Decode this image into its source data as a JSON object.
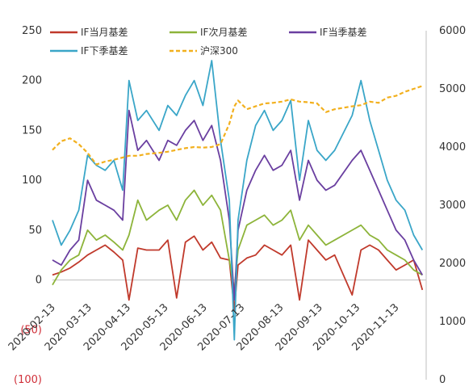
{
  "chart_data": {
    "type": "line",
    "title": "",
    "xlabel": "",
    "ylabel": "",
    "ylim": [
      -100,
      250
    ],
    "y2lim": [
      0,
      6000
    ],
    "grid": false,
    "legend_position": "top",
    "y_ticks": [
      "250",
      "200",
      "150",
      "100",
      "50",
      "0",
      "(50)",
      "(100)"
    ],
    "y2_ticks": [
      "6000",
      "5000",
      "4000",
      "3000",
      "2000",
      "1000",
      "0"
    ],
    "x_ticks": [
      "2020-02-13",
      "2020-03-13",
      "2020-04-13",
      "2020-05-13",
      "2020-06-13",
      "2020-07-13",
      "2020-08-13",
      "2020-09-13",
      "2020-10-13",
      "2020-11-13"
    ],
    "series": [
      {
        "name": "IF当月基差",
        "axis": "left",
        "color": "#c0392b",
        "dash": false,
        "x": [
          "2020-02-13",
          "2020-02-20",
          "2020-02-27",
          "2020-03-05",
          "2020-03-12",
          "2020-03-19",
          "2020-03-26",
          "2020-04-02",
          "2020-04-09",
          "2020-04-14",
          "2020-04-21",
          "2020-04-28",
          "2020-05-08",
          "2020-05-15",
          "2020-05-22",
          "2020-05-29",
          "2020-06-05",
          "2020-06-12",
          "2020-06-19",
          "2020-06-26",
          "2020-07-03",
          "2020-07-07",
          "2020-07-10",
          "2020-07-17",
          "2020-07-24",
          "2020-07-31",
          "2020-08-07",
          "2020-08-14",
          "2020-08-21",
          "2020-08-28",
          "2020-09-04",
          "2020-09-11",
          "2020-09-18",
          "2020-09-25",
          "2020-10-09",
          "2020-10-16",
          "2020-10-23",
          "2020-10-30",
          "2020-11-06",
          "2020-11-13",
          "2020-11-20",
          "2020-11-27",
          "2020-12-04"
        ],
        "values": [
          5,
          8,
          12,
          18,
          25,
          30,
          35,
          28,
          20,
          -20,
          32,
          30,
          30,
          40,
          -18,
          38,
          44,
          30,
          38,
          22,
          20,
          -30,
          15,
          22,
          25,
          35,
          30,
          25,
          35,
          -20,
          40,
          30,
          20,
          25,
          -15,
          30,
          35,
          30,
          20,
          10,
          15,
          20,
          -10
        ]
      },
      {
        "name": "IF次月基差",
        "axis": "left",
        "color": "#8db43a",
        "dash": false,
        "x": [
          "2020-02-13",
          "2020-02-20",
          "2020-02-27",
          "2020-03-05",
          "2020-03-12",
          "2020-03-19",
          "2020-03-26",
          "2020-04-02",
          "2020-04-09",
          "2020-04-14",
          "2020-04-21",
          "2020-04-28",
          "2020-05-08",
          "2020-05-15",
          "2020-05-22",
          "2020-05-29",
          "2020-06-05",
          "2020-06-12",
          "2020-06-19",
          "2020-06-26",
          "2020-07-03",
          "2020-07-07",
          "2020-07-10",
          "2020-07-17",
          "2020-07-24",
          "2020-07-31",
          "2020-08-07",
          "2020-08-14",
          "2020-08-21",
          "2020-08-28",
          "2020-09-04",
          "2020-09-11",
          "2020-09-18",
          "2020-09-25",
          "2020-10-09",
          "2020-10-16",
          "2020-10-23",
          "2020-10-30",
          "2020-11-06",
          "2020-11-13",
          "2020-11-20",
          "2020-11-27",
          "2020-12-04"
        ],
        "values": [
          -5,
          10,
          20,
          25,
          50,
          40,
          45,
          38,
          30,
          45,
          80,
          60,
          70,
          75,
          60,
          80,
          90,
          75,
          85,
          70,
          20,
          -10,
          30,
          55,
          60,
          65,
          55,
          60,
          70,
          40,
          55,
          45,
          35,
          40,
          50,
          55,
          45,
          40,
          30,
          25,
          20,
          10,
          5
        ]
      },
      {
        "name": "IF当季基差",
        "axis": "left",
        "color": "#6a3fa0",
        "dash": false,
        "x": [
          "2020-02-13",
          "2020-02-20",
          "2020-02-27",
          "2020-03-05",
          "2020-03-12",
          "2020-03-19",
          "2020-03-26",
          "2020-04-02",
          "2020-04-09",
          "2020-04-14",
          "2020-04-21",
          "2020-04-28",
          "2020-05-08",
          "2020-05-15",
          "2020-05-22",
          "2020-05-29",
          "2020-06-05",
          "2020-06-12",
          "2020-06-19",
          "2020-06-26",
          "2020-07-03",
          "2020-07-07",
          "2020-07-10",
          "2020-07-17",
          "2020-07-24",
          "2020-07-31",
          "2020-08-07",
          "2020-08-14",
          "2020-08-21",
          "2020-08-28",
          "2020-09-04",
          "2020-09-11",
          "2020-09-18",
          "2020-09-25",
          "2020-10-09",
          "2020-10-16",
          "2020-10-23",
          "2020-10-30",
          "2020-11-06",
          "2020-11-13",
          "2020-11-20",
          "2020-11-27",
          "2020-12-04"
        ],
        "values": [
          20,
          15,
          30,
          40,
          100,
          80,
          75,
          70,
          60,
          170,
          130,
          140,
          120,
          140,
          135,
          150,
          160,
          140,
          155,
          120,
          60,
          -20,
          50,
          90,
          110,
          125,
          110,
          115,
          130,
          80,
          120,
          100,
          90,
          95,
          120,
          130,
          110,
          90,
          70,
          50,
          40,
          20,
          5
        ]
      },
      {
        "name": "IF下季基差",
        "axis": "left",
        "color": "#3aa6c8",
        "dash": false,
        "x": [
          "2020-02-13",
          "2020-02-20",
          "2020-02-27",
          "2020-03-05",
          "2020-03-12",
          "2020-03-19",
          "2020-03-26",
          "2020-04-02",
          "2020-04-09",
          "2020-04-14",
          "2020-04-21",
          "2020-04-28",
          "2020-05-08",
          "2020-05-15",
          "2020-05-22",
          "2020-05-29",
          "2020-06-05",
          "2020-06-12",
          "2020-06-19",
          "2020-06-26",
          "2020-07-03",
          "2020-07-07",
          "2020-07-10",
          "2020-07-17",
          "2020-07-24",
          "2020-07-31",
          "2020-08-07",
          "2020-08-14",
          "2020-08-21",
          "2020-08-28",
          "2020-09-04",
          "2020-09-11",
          "2020-09-18",
          "2020-09-25",
          "2020-10-09",
          "2020-10-16",
          "2020-10-23",
          "2020-10-30",
          "2020-11-06",
          "2020-11-13",
          "2020-11-20",
          "2020-11-27",
          "2020-12-04"
        ],
        "values": [
          60,
          35,
          50,
          70,
          125,
          115,
          110,
          120,
          90,
          200,
          160,
          170,
          150,
          175,
          165,
          185,
          200,
          175,
          220,
          140,
          80,
          -60,
          60,
          120,
          155,
          170,
          150,
          160,
          180,
          100,
          160,
          130,
          120,
          130,
          165,
          200,
          160,
          130,
          100,
          80,
          70,
          45,
          30
        ]
      },
      {
        "name": "沪深300",
        "axis": "right",
        "color": "#f2b01e",
        "dash": true,
        "x": [
          "2020-02-13",
          "2020-02-20",
          "2020-02-27",
          "2020-03-05",
          "2020-03-12",
          "2020-03-19",
          "2020-03-26",
          "2020-04-02",
          "2020-04-09",
          "2020-04-14",
          "2020-04-21",
          "2020-04-28",
          "2020-05-08",
          "2020-05-15",
          "2020-05-22",
          "2020-05-29",
          "2020-06-05",
          "2020-06-12",
          "2020-06-19",
          "2020-06-26",
          "2020-07-03",
          "2020-07-07",
          "2020-07-10",
          "2020-07-17",
          "2020-07-24",
          "2020-07-31",
          "2020-08-07",
          "2020-08-14",
          "2020-08-21",
          "2020-08-28",
          "2020-09-04",
          "2020-09-11",
          "2020-09-18",
          "2020-09-25",
          "2020-10-09",
          "2020-10-16",
          "2020-10-23",
          "2020-10-30",
          "2020-11-06",
          "2020-11-13",
          "2020-11-20",
          "2020-11-27",
          "2020-12-04"
        ],
        "values": [
          3950,
          4100,
          4150,
          4050,
          3900,
          3700,
          3750,
          3780,
          3820,
          3850,
          3850,
          3880,
          3900,
          3920,
          3950,
          3980,
          4000,
          3990,
          4000,
          4050,
          4400,
          4700,
          4800,
          4650,
          4700,
          4750,
          4760,
          4780,
          4820,
          4780,
          4770,
          4750,
          4600,
          4650,
          4700,
          4720,
          4780,
          4760,
          4850,
          4880,
          4950,
          5000,
          5050
        ]
      }
    ]
  }
}
